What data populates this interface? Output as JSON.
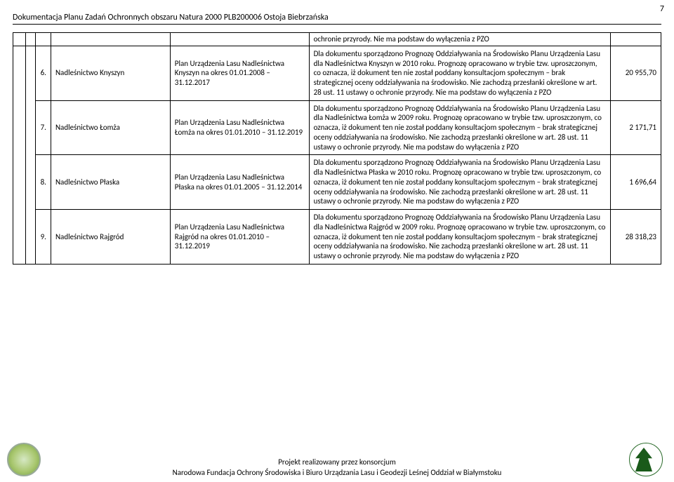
{
  "page_number": "7",
  "header_title": "Dokumentacja Planu Zadań Ochronnych obszaru Natura 2000 PLB200006 Ostoja Biebrzańska",
  "table": {
    "spacer_row": {
      "desc": "ochronie przyrody. Nie ma podstaw do wyłączenia z PZO"
    },
    "rows": [
      {
        "num": "6.",
        "name": "Nadleśnictwo Knyszyn",
        "plan": "Plan Urządzenia Lasu Nadleśnictwa Knyszyn na okres 01.01.2008 – 31.12.2017",
        "desc": "Dla dokumentu sporządzono Prognozę Oddziaływania na Środowisko Planu Urządzenia Lasu dla Nadleśnictwa Knyszyn w 2010 roku. Prognozę opracowano w trybie tzw. uproszczonym, co oznacza, iż dokument ten nie został poddany konsultacjom społecznym – brak strategicznej oceny oddziaływania na środowisko. Nie zachodzą przesłanki określone w art. 28 ust. 11 ustawy o ochronie przyrody. Nie ma podstaw do wyłączenia z PZO",
        "value": "20 955,70"
      },
      {
        "num": "7.",
        "name": "Nadleśnictwo Łomża",
        "plan": "Plan Urządzenia Lasu Nadleśnictwa Łomża na okres 01.01.2010 – 31.12.2019",
        "desc": "Dla dokumentu sporządzono Prognozę Oddziaływania na Środowisko Planu Urządzenia Lasu dla Nadleśnictwa Łomża w 2009 roku. Prognozę opracowano w trybie tzw. uproszczonym, co oznacza, iż dokument ten nie został poddany konsultacjom społecznym – brak strategicznej oceny oddziaływania na środowisko. Nie zachodzą przesłanki określone w art. 28 ust. 11 ustawy o ochronie przyrody. Nie ma podstaw do wyłączenia z PZO",
        "value": "2 171,71"
      },
      {
        "num": "8.",
        "name": "Nadleśnictwo Płaska",
        "plan": "Plan Urządzenia Lasu Nadleśnictwa Płaska na okres 01.01.2005 – 31.12.2014",
        "desc": "Dla dokumentu sporządzono Prognozę Oddziaływania na Środowisko Planu Urządzenia Lasu dla Nadleśnictwa Płaska w 2010 roku. Prognozę opracowano w trybie tzw. uproszczonym, co oznacza, iż dokument ten nie został poddany konsultacjom społecznym – brak strategicznej oceny oddziaływania na środowisko. Nie zachodzą przesłanki określone w art. 28 ust. 11 ustawy o ochronie przyrody. Nie ma podstaw do wyłączenia z PZO",
        "value": "1 696,64"
      },
      {
        "num": "9.",
        "name": "Nadleśnictwo Rajgród",
        "plan": "Plan Urządzenia Lasu Nadleśnictwa Rajgród na okres 01.01.2010 – 31.12.2019",
        "desc": "Dla dokumentu sporządzono Prognozę Oddziaływania na Środowisko Planu Urządzenia Lasu dla Nadleśnictwa Rajgród w 2009 roku. Prognozę opracowano w trybie tzw. uproszczonym, co oznacza, iż dokument ten nie został poddany konsultacjom społecznym – brak strategicznej oceny oddziaływania na środowisko. Nie zachodzą przesłanki określone w art. 28 ust. 11 ustawy o ochronie przyrody. Nie ma podstaw do wyłączenia z PZO",
        "value": "28 318,23"
      }
    ]
  },
  "footer": {
    "line1": "Projekt realizowany przez konsorcjum",
    "line2": "Narodowa Fundacja Ochrony Środowiska i Biuro Urządzania Lasu i Geodezji Leśnej Oddział w Białymstoku"
  }
}
